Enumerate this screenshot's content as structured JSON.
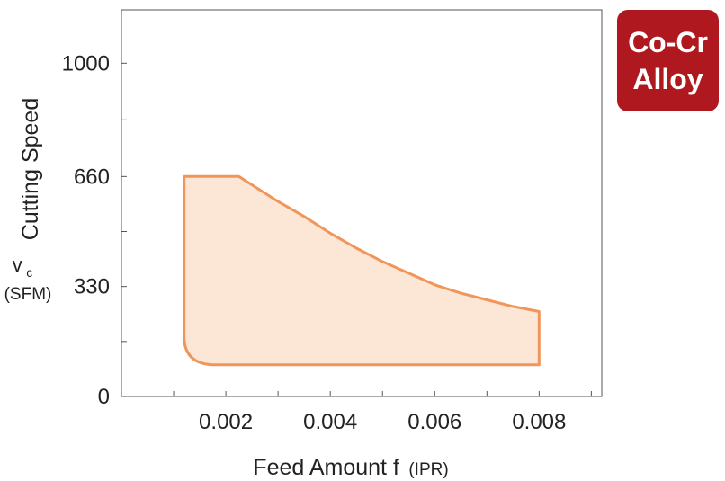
{
  "badge": {
    "line1": "Co-Cr",
    "line2": "Alloy",
    "color": "#b01820"
  },
  "chart_data": {
    "type": "area",
    "title": "",
    "xlabel": "Feed Amount f",
    "xlabel_unit": "(IPR)",
    "ylabel": "Cutting Speed",
    "ylabel_symbol": "v",
    "ylabel_symbol_sub": "c",
    "ylabel_unit": "(SFM)",
    "xlim": [
      0,
      0.0092
    ],
    "ylim": [
      0,
      1160
    ],
    "x_ticks": [
      0.002,
      0.004,
      0.006,
      0.008
    ],
    "x_tick_labels": [
      "0.002",
      "0.004",
      "0.006",
      "0.008"
    ],
    "x_minor_ticks": [
      0.001,
      0.002,
      0.003,
      0.004,
      0.005,
      0.006,
      0.007,
      0.008,
      0.009
    ],
    "y_ticks": [
      0,
      330,
      660,
      1000
    ],
    "y_tick_labels": [
      "0",
      "330",
      "660",
      "1000"
    ],
    "y_minor_ticks": [
      0,
      165,
      330,
      495,
      660,
      830,
      1000
    ],
    "grid": false,
    "fill_color": "#fce6d5",
    "line_color": "#f0965a",
    "region": {
      "points": [
        [
          0.0012,
          660
        ],
        [
          0.00225,
          660
        ],
        [
          0.0025,
          635
        ],
        [
          0.003,
          585
        ],
        [
          0.0035,
          540
        ],
        [
          0.004,
          490
        ],
        [
          0.0045,
          445
        ],
        [
          0.005,
          405
        ],
        [
          0.0055,
          370
        ],
        [
          0.006,
          335
        ],
        [
          0.0065,
          310
        ],
        [
          0.007,
          290
        ],
        [
          0.0075,
          270
        ],
        [
          0.008,
          255
        ],
        [
          0.008,
          95
        ],
        [
          0.0018,
          95
        ],
        [
          0.0012,
          180
        ]
      ]
    }
  }
}
